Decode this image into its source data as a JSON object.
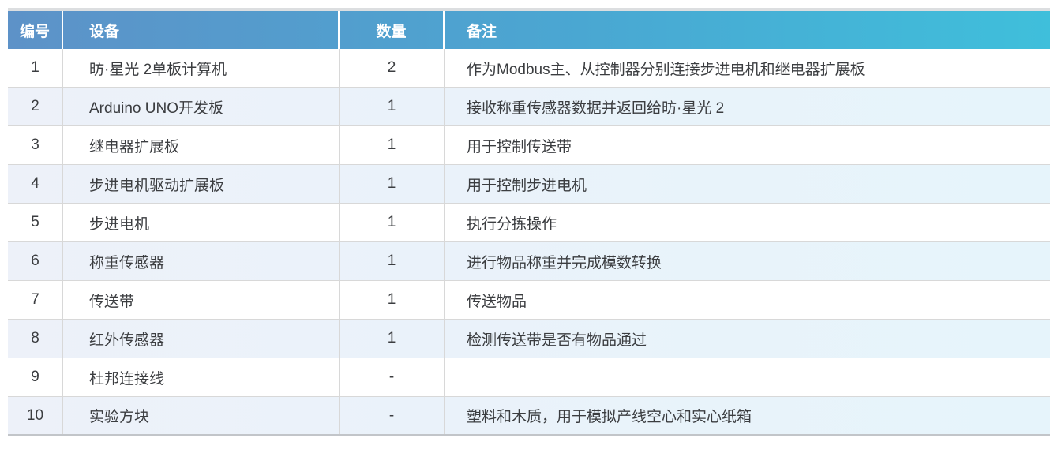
{
  "theme": {
    "header_grad_start": "#5d92c8",
    "header_grad_end": "#3fbfdb",
    "even_row_start": "#edf1f9",
    "even_row_end": "#e6f4fb",
    "row_border": "#d8d8d8",
    "table_bottom_border": "#c2c5c9",
    "top_strip": "#dcdee0",
    "text_color": "#3b3d40",
    "header_text": "#ffffff"
  },
  "table": {
    "columns": [
      "编号",
      "设备",
      "数量",
      "备注"
    ],
    "rows": [
      {
        "number": "1",
        "device": "昉·星光 2单板计算机",
        "quantity": "2",
        "remark": "作为Modbus主、从控制器分别连接步进电机和继电器扩展板"
      },
      {
        "number": "2",
        "device": "Arduino UNO开发板",
        "quantity": "1",
        "remark": "接收称重传感器数据并返回给昉·星光 2"
      },
      {
        "number": "3",
        "device": "继电器扩展板",
        "quantity": "1",
        "remark": "用于控制传送带"
      },
      {
        "number": "4",
        "device": "步进电机驱动扩展板",
        "quantity": "1",
        "remark": "用于控制步进电机"
      },
      {
        "number": "5",
        "device": "步进电机",
        "quantity": "1",
        "remark": "执行分拣操作"
      },
      {
        "number": "6",
        "device": "称重传感器",
        "quantity": "1",
        "remark": "进行物品称重并完成模数转换"
      },
      {
        "number": "7",
        "device": "传送带",
        "quantity": "1",
        "remark": "传送物品"
      },
      {
        "number": "8",
        "device": "红外传感器",
        "quantity": "1",
        "remark": "检测传送带是否有物品通过"
      },
      {
        "number": "9",
        "device": "杜邦连接线",
        "quantity": "-",
        "remark": ""
      },
      {
        "number": "10",
        "device": "实验方块",
        "quantity": "-",
        "remark": "塑料和木质，用于模拟产线空心和实心纸箱"
      }
    ]
  }
}
